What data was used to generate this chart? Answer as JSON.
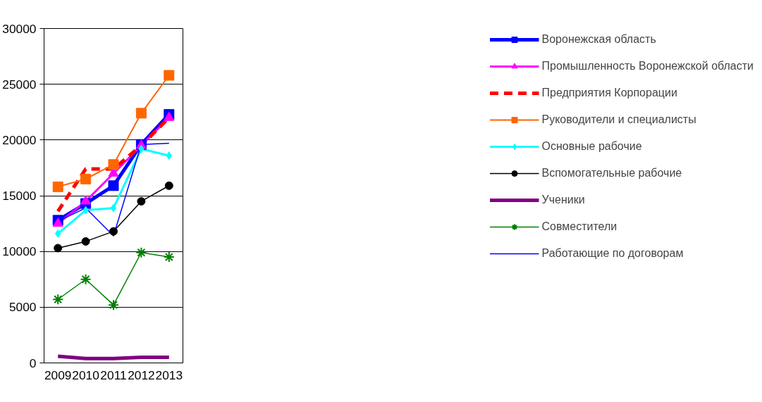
{
  "chart_data": {
    "type": "line",
    "x": [
      2009,
      2010,
      2011,
      2012,
      2013
    ],
    "xlim": [
      2008.5,
      2013.5
    ],
    "xticks": [
      2009,
      2010,
      2011,
      2012,
      2013
    ],
    "ylim": [
      0,
      30000
    ],
    "yticks": [
      0,
      5000,
      10000,
      15000,
      20000,
      25000,
      30000
    ],
    "grid": "y",
    "legend": "right",
    "series": [
      {
        "name": "Воронежская область",
        "color": "#0000ff",
        "marker": "square",
        "values": [
          12800,
          14300,
          15900,
          19600,
          22300
        ]
      },
      {
        "name": "Промышленность Воронежской области",
        "color": "#ff00ff",
        "marker": "triangle",
        "values": [
          12500,
          14500,
          17000,
          19500,
          22000
        ]
      },
      {
        "name": "Предприятия Корпорации",
        "color": "#ff0000",
        "marker": "none",
        "line_style": "dashed",
        "values": [
          13600,
          17400,
          17400,
          19500,
          22000
        ]
      },
      {
        "name": "Руководители и специалисты",
        "color": "#ff6600",
        "marker": "square",
        "values": [
          15800,
          16500,
          17800,
          22400,
          25800
        ]
      },
      {
        "name": "Основные рабочие",
        "color": "#00ffff",
        "marker": "diamond",
        "values": [
          11600,
          13700,
          13900,
          19200,
          18600
        ]
      },
      {
        "name": "Вспомогательные рабочие",
        "color": "#000000",
        "marker": "circle",
        "values": [
          10300,
          10900,
          11800,
          14500,
          15900
        ]
      },
      {
        "name": "Ученики",
        "color": "#800080",
        "marker": "none",
        "values": [
          600,
          400,
          400,
          500,
          500
        ]
      },
      {
        "name": "Совместители",
        "color": "#008000",
        "marker": "cross",
        "values": [
          5700,
          7500,
          5200,
          9900,
          9500
        ]
      },
      {
        "name": "Работающие по договорам",
        "color": "#0000ff",
        "marker": "none",
        "values": [
          12700,
          13900,
          11400,
          19600,
          19700
        ]
      }
    ]
  }
}
